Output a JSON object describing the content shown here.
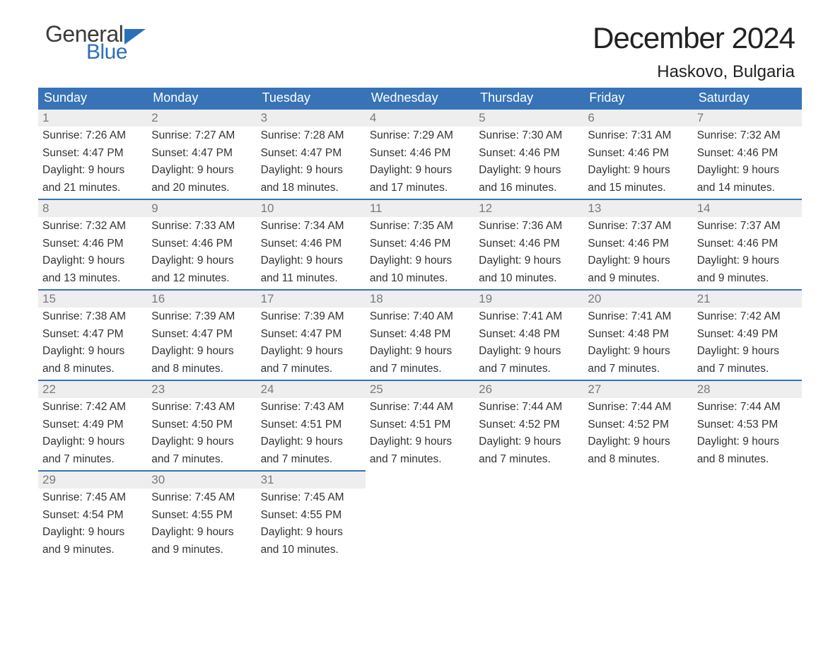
{
  "logo": {
    "text1": "General",
    "text2": "Blue"
  },
  "title": "December 2024",
  "subtitle": "Haskovo, Bulgaria",
  "colors": {
    "header_bg": "#3773b6",
    "header_text": "#ffffff",
    "daynum_bg": "#eeeeee",
    "daynum_text": "#7a7a7a",
    "body_text": "#333333",
    "rule": "#3773b6",
    "logo_blue": "#2c6fb9",
    "logo_gray": "#3b3b3b"
  },
  "columns": [
    "Sunday",
    "Monday",
    "Tuesday",
    "Wednesday",
    "Thursday",
    "Friday",
    "Saturday"
  ],
  "weeks": [
    [
      {
        "day": "1",
        "sunrise": "Sunrise: 7:26 AM",
        "sunset": "Sunset: 4:47 PM",
        "d1": "Daylight: 9 hours",
        "d2": "and 21 minutes."
      },
      {
        "day": "2",
        "sunrise": "Sunrise: 7:27 AM",
        "sunset": "Sunset: 4:47 PM",
        "d1": "Daylight: 9 hours",
        "d2": "and 20 minutes."
      },
      {
        "day": "3",
        "sunrise": "Sunrise: 7:28 AM",
        "sunset": "Sunset: 4:47 PM",
        "d1": "Daylight: 9 hours",
        "d2": "and 18 minutes."
      },
      {
        "day": "4",
        "sunrise": "Sunrise: 7:29 AM",
        "sunset": "Sunset: 4:46 PM",
        "d1": "Daylight: 9 hours",
        "d2": "and 17 minutes."
      },
      {
        "day": "5",
        "sunrise": "Sunrise: 7:30 AM",
        "sunset": "Sunset: 4:46 PM",
        "d1": "Daylight: 9 hours",
        "d2": "and 16 minutes."
      },
      {
        "day": "6",
        "sunrise": "Sunrise: 7:31 AM",
        "sunset": "Sunset: 4:46 PM",
        "d1": "Daylight: 9 hours",
        "d2": "and 15 minutes."
      },
      {
        "day": "7",
        "sunrise": "Sunrise: 7:32 AM",
        "sunset": "Sunset: 4:46 PM",
        "d1": "Daylight: 9 hours",
        "d2": "and 14 minutes."
      }
    ],
    [
      {
        "day": "8",
        "sunrise": "Sunrise: 7:32 AM",
        "sunset": "Sunset: 4:46 PM",
        "d1": "Daylight: 9 hours",
        "d2": "and 13 minutes."
      },
      {
        "day": "9",
        "sunrise": "Sunrise: 7:33 AM",
        "sunset": "Sunset: 4:46 PM",
        "d1": "Daylight: 9 hours",
        "d2": "and 12 minutes."
      },
      {
        "day": "10",
        "sunrise": "Sunrise: 7:34 AM",
        "sunset": "Sunset: 4:46 PM",
        "d1": "Daylight: 9 hours",
        "d2": "and 11 minutes."
      },
      {
        "day": "11",
        "sunrise": "Sunrise: 7:35 AM",
        "sunset": "Sunset: 4:46 PM",
        "d1": "Daylight: 9 hours",
        "d2": "and 10 minutes."
      },
      {
        "day": "12",
        "sunrise": "Sunrise: 7:36 AM",
        "sunset": "Sunset: 4:46 PM",
        "d1": "Daylight: 9 hours",
        "d2": "and 10 minutes."
      },
      {
        "day": "13",
        "sunrise": "Sunrise: 7:37 AM",
        "sunset": "Sunset: 4:46 PM",
        "d1": "Daylight: 9 hours",
        "d2": "and 9 minutes."
      },
      {
        "day": "14",
        "sunrise": "Sunrise: 7:37 AM",
        "sunset": "Sunset: 4:46 PM",
        "d1": "Daylight: 9 hours",
        "d2": "and 9 minutes."
      }
    ],
    [
      {
        "day": "15",
        "sunrise": "Sunrise: 7:38 AM",
        "sunset": "Sunset: 4:47 PM",
        "d1": "Daylight: 9 hours",
        "d2": "and 8 minutes."
      },
      {
        "day": "16",
        "sunrise": "Sunrise: 7:39 AM",
        "sunset": "Sunset: 4:47 PM",
        "d1": "Daylight: 9 hours",
        "d2": "and 8 minutes."
      },
      {
        "day": "17",
        "sunrise": "Sunrise: 7:39 AM",
        "sunset": "Sunset: 4:47 PM",
        "d1": "Daylight: 9 hours",
        "d2": "and 7 minutes."
      },
      {
        "day": "18",
        "sunrise": "Sunrise: 7:40 AM",
        "sunset": "Sunset: 4:48 PM",
        "d1": "Daylight: 9 hours",
        "d2": "and 7 minutes."
      },
      {
        "day": "19",
        "sunrise": "Sunrise: 7:41 AM",
        "sunset": "Sunset: 4:48 PM",
        "d1": "Daylight: 9 hours",
        "d2": "and 7 minutes."
      },
      {
        "day": "20",
        "sunrise": "Sunrise: 7:41 AM",
        "sunset": "Sunset: 4:48 PM",
        "d1": "Daylight: 9 hours",
        "d2": "and 7 minutes."
      },
      {
        "day": "21",
        "sunrise": "Sunrise: 7:42 AM",
        "sunset": "Sunset: 4:49 PM",
        "d1": "Daylight: 9 hours",
        "d2": "and 7 minutes."
      }
    ],
    [
      {
        "day": "22",
        "sunrise": "Sunrise: 7:42 AM",
        "sunset": "Sunset: 4:49 PM",
        "d1": "Daylight: 9 hours",
        "d2": "and 7 minutes."
      },
      {
        "day": "23",
        "sunrise": "Sunrise: 7:43 AM",
        "sunset": "Sunset: 4:50 PM",
        "d1": "Daylight: 9 hours",
        "d2": "and 7 minutes."
      },
      {
        "day": "24",
        "sunrise": "Sunrise: 7:43 AM",
        "sunset": "Sunset: 4:51 PM",
        "d1": "Daylight: 9 hours",
        "d2": "and 7 minutes."
      },
      {
        "day": "25",
        "sunrise": "Sunrise: 7:44 AM",
        "sunset": "Sunset: 4:51 PM",
        "d1": "Daylight: 9 hours",
        "d2": "and 7 minutes."
      },
      {
        "day": "26",
        "sunrise": "Sunrise: 7:44 AM",
        "sunset": "Sunset: 4:52 PM",
        "d1": "Daylight: 9 hours",
        "d2": "and 7 minutes."
      },
      {
        "day": "27",
        "sunrise": "Sunrise: 7:44 AM",
        "sunset": "Sunset: 4:52 PM",
        "d1": "Daylight: 9 hours",
        "d2": "and 8 minutes."
      },
      {
        "day": "28",
        "sunrise": "Sunrise: 7:44 AM",
        "sunset": "Sunset: 4:53 PM",
        "d1": "Daylight: 9 hours",
        "d2": "and 8 minutes."
      }
    ],
    [
      {
        "day": "29",
        "sunrise": "Sunrise: 7:45 AM",
        "sunset": "Sunset: 4:54 PM",
        "d1": "Daylight: 9 hours",
        "d2": "and 9 minutes."
      },
      {
        "day": "30",
        "sunrise": "Sunrise: 7:45 AM",
        "sunset": "Sunset: 4:55 PM",
        "d1": "Daylight: 9 hours",
        "d2": "and 9 minutes."
      },
      {
        "day": "31",
        "sunrise": "Sunrise: 7:45 AM",
        "sunset": "Sunset: 4:55 PM",
        "d1": "Daylight: 9 hours",
        "d2": "and 10 minutes."
      },
      null,
      null,
      null,
      null
    ]
  ]
}
